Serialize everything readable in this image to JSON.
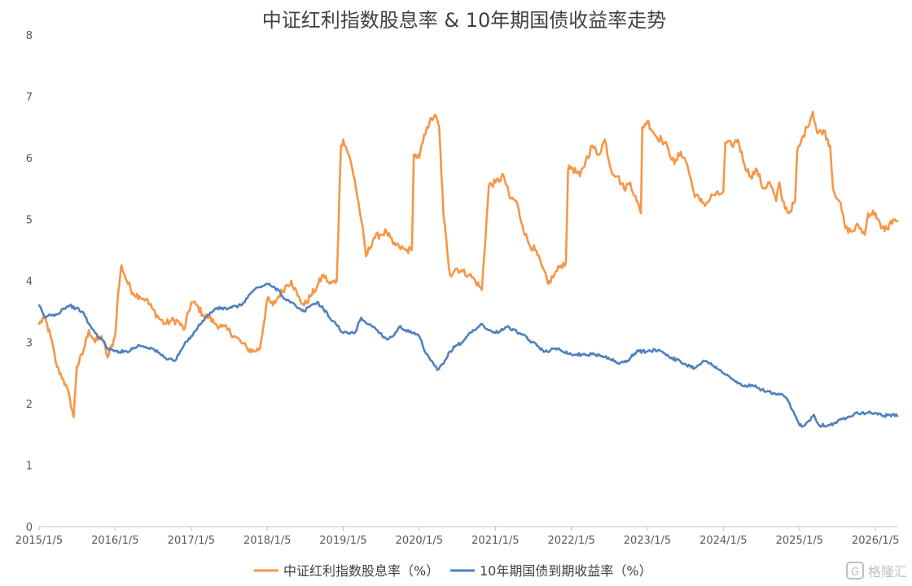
{
  "chart_data": {
    "type": "line",
    "title": "中证红利指数股息率 & 10年期国债收益率走势",
    "xlabel": "",
    "ylabel": "",
    "ylim": [
      0,
      8
    ],
    "yticks": [
      "0",
      "1",
      "2",
      "3",
      "4",
      "5",
      "6",
      "7",
      "8"
    ],
    "xlim": [
      "2015-01-05",
      "2026-04-20"
    ],
    "xticks": [
      "2015/1/5",
      "2016/1/5",
      "2017/1/5",
      "2018/1/5",
      "2019/1/5",
      "2020/1/5",
      "2021/1/5",
      "2022/1/5",
      "2023/1/5",
      "2024/1/5",
      "2025/1/5",
      "2026/1/5"
    ],
    "grid": false,
    "legend_position": "bottom",
    "series": [
      {
        "name": "中证红利指数股息率（%）",
        "color": "#F79646",
        "points": [
          [
            "2015-01-05",
            3.3
          ],
          [
            "2015-02-01",
            3.4
          ],
          [
            "2015-03-01",
            3.1
          ],
          [
            "2015-04-01",
            2.6
          ],
          [
            "2015-05-01",
            2.4
          ],
          [
            "2015-06-01",
            2.1
          ],
          [
            "2015-06-20",
            1.78
          ],
          [
            "2015-07-05",
            2.6
          ],
          [
            "2015-08-01",
            2.8
          ],
          [
            "2015-09-01",
            3.2
          ],
          [
            "2015-10-01",
            3.0
          ],
          [
            "2015-11-01",
            3.1
          ],
          [
            "2015-12-01",
            2.75
          ],
          [
            "2016-01-05",
            3.1
          ],
          [
            "2016-01-20",
            3.8
          ],
          [
            "2016-02-05",
            4.25
          ],
          [
            "2016-03-01",
            4.0
          ],
          [
            "2016-04-01",
            3.8
          ],
          [
            "2016-05-01",
            3.75
          ],
          [
            "2016-06-01",
            3.7
          ],
          [
            "2016-07-01",
            3.55
          ],
          [
            "2016-08-01",
            3.4
          ],
          [
            "2016-09-01",
            3.3
          ],
          [
            "2016-10-01",
            3.35
          ],
          [
            "2016-11-01",
            3.35
          ],
          [
            "2016-12-01",
            3.2
          ],
          [
            "2017-01-05",
            3.65
          ],
          [
            "2017-02-01",
            3.6
          ],
          [
            "2017-03-01",
            3.45
          ],
          [
            "2017-04-01",
            3.4
          ],
          [
            "2017-05-01",
            3.3
          ],
          [
            "2017-06-01",
            3.25
          ],
          [
            "2017-07-01",
            3.2
          ],
          [
            "2017-08-01",
            3.1
          ],
          [
            "2017-09-01",
            3.0
          ],
          [
            "2017-10-01",
            2.9
          ],
          [
            "2017-11-01",
            2.85
          ],
          [
            "2017-12-01",
            2.9
          ],
          [
            "2018-01-05",
            3.7
          ],
          [
            "2018-02-01",
            3.6
          ],
          [
            "2018-03-01",
            3.75
          ],
          [
            "2018-04-01",
            3.9
          ],
          [
            "2018-05-01",
            4.0
          ],
          [
            "2018-06-01",
            3.75
          ],
          [
            "2018-07-01",
            3.6
          ],
          [
            "2018-08-01",
            3.75
          ],
          [
            "2018-09-01",
            3.9
          ],
          [
            "2018-10-01",
            4.1
          ],
          [
            "2018-11-01",
            3.95
          ],
          [
            "2018-12-05",
            4.0
          ],
          [
            "2018-12-25",
            6.2
          ],
          [
            "2019-01-05",
            6.3
          ],
          [
            "2019-02-01",
            6.05
          ],
          [
            "2019-03-01",
            5.65
          ],
          [
            "2019-04-01",
            5.0
          ],
          [
            "2019-04-25",
            4.4
          ],
          [
            "2019-06-01",
            4.7
          ],
          [
            "2019-07-01",
            4.75
          ],
          [
            "2019-08-01",
            4.8
          ],
          [
            "2019-09-01",
            4.6
          ],
          [
            "2019-10-01",
            4.55
          ],
          [
            "2019-11-01",
            4.5
          ],
          [
            "2019-12-01",
            4.5
          ],
          [
            "2019-12-10",
            6.05
          ],
          [
            "2020-01-05",
            6.0
          ],
          [
            "2020-02-10",
            6.5
          ],
          [
            "2020-03-20",
            6.7
          ],
          [
            "2020-04-10",
            6.5
          ],
          [
            "2020-05-01",
            5.05
          ],
          [
            "2020-06-01",
            4.1
          ],
          [
            "2020-07-01",
            4.2
          ],
          [
            "2020-08-01",
            4.15
          ],
          [
            "2020-09-01",
            4.1
          ],
          [
            "2020-10-01",
            4.0
          ],
          [
            "2020-11-01",
            3.85
          ],
          [
            "2020-12-05",
            5.55
          ],
          [
            "2021-01-05",
            5.6
          ],
          [
            "2021-02-15",
            5.7
          ],
          [
            "2021-03-15",
            5.35
          ],
          [
            "2021-04-15",
            5.3
          ],
          [
            "2021-05-15",
            4.9
          ],
          [
            "2021-06-15",
            4.6
          ],
          [
            "2021-07-15",
            4.5
          ],
          [
            "2021-08-15",
            4.25
          ],
          [
            "2021-09-15",
            3.95
          ],
          [
            "2021-10-15",
            4.1
          ],
          [
            "2021-11-15",
            4.25
          ],
          [
            "2021-12-10",
            4.3
          ],
          [
            "2021-12-20",
            5.8
          ],
          [
            "2022-01-05",
            5.85
          ],
          [
            "2022-02-15",
            5.7
          ],
          [
            "2022-03-15",
            5.95
          ],
          [
            "2022-04-15",
            6.2
          ],
          [
            "2022-05-15",
            6.05
          ],
          [
            "2022-06-15",
            6.3
          ],
          [
            "2022-07-15",
            5.8
          ],
          [
            "2022-08-15",
            5.7
          ],
          [
            "2022-09-15",
            5.5
          ],
          [
            "2022-10-15",
            5.6
          ],
          [
            "2022-11-15",
            5.3
          ],
          [
            "2022-12-05",
            5.1
          ],
          [
            "2022-12-12",
            6.5
          ],
          [
            "2023-01-05",
            6.6
          ],
          [
            "2023-02-15",
            6.35
          ],
          [
            "2023-03-15",
            6.3
          ],
          [
            "2023-04-15",
            6.15
          ],
          [
            "2023-05-15",
            5.9
          ],
          [
            "2023-06-15",
            6.1
          ],
          [
            "2023-07-15",
            5.9
          ],
          [
            "2023-08-15",
            5.45
          ],
          [
            "2023-09-15",
            5.3
          ],
          [
            "2023-10-15",
            5.25
          ],
          [
            "2023-11-15",
            5.4
          ],
          [
            "2023-12-15",
            5.4
          ],
          [
            "2024-01-05",
            5.45
          ],
          [
            "2024-01-15",
            6.25
          ],
          [
            "2024-02-15",
            6.2
          ],
          [
            "2024-03-15",
            6.3
          ],
          [
            "2024-04-15",
            5.9
          ],
          [
            "2024-05-15",
            5.7
          ],
          [
            "2024-06-15",
            5.8
          ],
          [
            "2024-07-15",
            5.5
          ],
          [
            "2024-08-15",
            5.6
          ],
          [
            "2024-09-15",
            5.3
          ],
          [
            "2024-10-01",
            5.6
          ],
          [
            "2024-10-15",
            5.3
          ],
          [
            "2024-11-15",
            5.1
          ],
          [
            "2024-12-15",
            5.3
          ],
          [
            "2024-12-25",
            6.1
          ],
          [
            "2025-01-05",
            6.2
          ],
          [
            "2025-02-10",
            6.5
          ],
          [
            "2025-03-10",
            6.75
          ],
          [
            "2025-04-01",
            6.4
          ],
          [
            "2025-05-01",
            6.45
          ],
          [
            "2025-06-01",
            6.2
          ],
          [
            "2025-06-15",
            5.5
          ],
          [
            "2025-07-15",
            5.3
          ],
          [
            "2025-08-15",
            4.85
          ],
          [
            "2025-09-15",
            4.8
          ],
          [
            "2025-10-15",
            4.9
          ],
          [
            "2025-11-15",
            4.75
          ],
          [
            "2025-12-01",
            5.1
          ],
          [
            "2026-01-05",
            5.1
          ],
          [
            "2026-02-01",
            4.85
          ],
          [
            "2026-03-01",
            4.85
          ],
          [
            "2026-04-01",
            5.0
          ],
          [
            "2026-04-20",
            4.97
          ]
        ]
      },
      {
        "name": "10年期国债到期收益率（%）",
        "color": "#4F81BD",
        "points": [
          [
            "2015-01-05",
            3.6
          ],
          [
            "2015-02-01",
            3.4
          ],
          [
            "2015-03-01",
            3.45
          ],
          [
            "2015-04-01",
            3.45
          ],
          [
            "2015-05-01",
            3.55
          ],
          [
            "2015-06-01",
            3.6
          ],
          [
            "2015-07-01",
            3.55
          ],
          [
            "2015-08-01",
            3.5
          ],
          [
            "2015-09-01",
            3.3
          ],
          [
            "2015-10-01",
            3.15
          ],
          [
            "2015-11-01",
            3.05
          ],
          [
            "2015-12-01",
            2.9
          ],
          [
            "2016-01-05",
            2.85
          ],
          [
            "2016-03-01",
            2.85
          ],
          [
            "2016-05-01",
            2.95
          ],
          [
            "2016-07-01",
            2.9
          ],
          [
            "2016-09-01",
            2.75
          ],
          [
            "2016-10-20",
            2.7
          ],
          [
            "2016-12-01",
            2.95
          ],
          [
            "2017-01-05",
            3.1
          ],
          [
            "2017-03-01",
            3.35
          ],
          [
            "2017-05-01",
            3.55
          ],
          [
            "2017-07-01",
            3.55
          ],
          [
            "2017-09-01",
            3.6
          ],
          [
            "2017-11-01",
            3.85
          ],
          [
            "2017-12-01",
            3.9
          ],
          [
            "2018-01-05",
            3.95
          ],
          [
            "2018-02-01",
            3.9
          ],
          [
            "2018-03-01",
            3.85
          ],
          [
            "2018-04-01",
            3.7
          ],
          [
            "2018-05-01",
            3.65
          ],
          [
            "2018-06-01",
            3.55
          ],
          [
            "2018-07-01",
            3.5
          ],
          [
            "2018-08-01",
            3.6
          ],
          [
            "2018-09-01",
            3.65
          ],
          [
            "2018-10-01",
            3.55
          ],
          [
            "2018-11-01",
            3.4
          ],
          [
            "2018-12-01",
            3.3
          ],
          [
            "2019-01-05",
            3.15
          ],
          [
            "2019-02-01",
            3.15
          ],
          [
            "2019-03-01",
            3.15
          ],
          [
            "2019-04-01",
            3.4
          ],
          [
            "2019-05-01",
            3.3
          ],
          [
            "2019-06-01",
            3.25
          ],
          [
            "2019-07-01",
            3.15
          ],
          [
            "2019-08-01",
            3.05
          ],
          [
            "2019-09-01",
            3.1
          ],
          [
            "2019-10-01",
            3.25
          ],
          [
            "2019-11-01",
            3.2
          ],
          [
            "2019-12-01",
            3.15
          ],
          [
            "2020-01-05",
            3.1
          ],
          [
            "2020-02-01",
            2.85
          ],
          [
            "2020-03-01",
            2.7
          ],
          [
            "2020-04-01",
            2.55
          ],
          [
            "2020-05-01",
            2.65
          ],
          [
            "2020-06-01",
            2.85
          ],
          [
            "2020-07-01",
            2.95
          ],
          [
            "2020-08-01",
            3.0
          ],
          [
            "2020-09-01",
            3.15
          ],
          [
            "2020-10-01",
            3.2
          ],
          [
            "2020-11-01",
            3.3
          ],
          [
            "2020-12-01",
            3.2
          ],
          [
            "2021-01-05",
            3.15
          ],
          [
            "2021-03-01",
            3.25
          ],
          [
            "2021-05-01",
            3.15
          ],
          [
            "2021-07-01",
            3.0
          ],
          [
            "2021-09-01",
            2.85
          ],
          [
            "2021-11-01",
            2.9
          ],
          [
            "2022-01-05",
            2.8
          ],
          [
            "2022-03-01",
            2.8
          ],
          [
            "2022-05-01",
            2.8
          ],
          [
            "2022-07-01",
            2.75
          ],
          [
            "2022-08-20",
            2.65
          ],
          [
            "2022-10-01",
            2.7
          ],
          [
            "2022-11-15",
            2.85
          ],
          [
            "2023-01-05",
            2.85
          ],
          [
            "2023-03-01",
            2.88
          ],
          [
            "2023-05-01",
            2.75
          ],
          [
            "2023-07-01",
            2.65
          ],
          [
            "2023-08-20",
            2.58
          ],
          [
            "2023-10-01",
            2.7
          ],
          [
            "2023-12-01",
            2.6
          ],
          [
            "2024-01-05",
            2.5
          ],
          [
            "2024-02-15",
            2.4
          ],
          [
            "2024-04-01",
            2.3
          ],
          [
            "2024-06-01",
            2.28
          ],
          [
            "2024-08-01",
            2.2
          ],
          [
            "2024-09-15",
            2.15
          ],
          [
            "2024-10-01",
            2.15
          ],
          [
            "2024-11-01",
            2.1
          ],
          [
            "2024-12-01",
            1.9
          ],
          [
            "2025-01-05",
            1.65
          ],
          [
            "2025-02-01",
            1.65
          ],
          [
            "2025-03-15",
            1.82
          ],
          [
            "2025-04-10",
            1.65
          ],
          [
            "2025-06-01",
            1.65
          ],
          [
            "2025-08-01",
            1.75
          ],
          [
            "2025-10-01",
            1.85
          ],
          [
            "2025-12-01",
            1.85
          ],
          [
            "2026-01-05",
            1.85
          ],
          [
            "2026-02-15",
            1.8
          ],
          [
            "2026-03-15",
            1.82
          ],
          [
            "2026-04-20",
            1.8
          ]
        ]
      }
    ]
  },
  "watermark": "格隆汇"
}
